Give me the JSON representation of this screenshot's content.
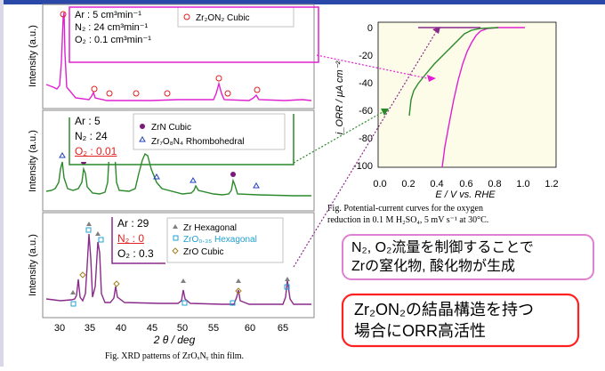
{
  "colors": {
    "top_bar": "#2a48a8",
    "magenta": "#e020d0",
    "green": "#2a8a2a",
    "purple": "#8a2a8a",
    "red": "#e02020",
    "orc_bg": "#fcfce8"
  },
  "xrd": {
    "panels": [
      {
        "ylabel": "Intensity (a.u.)",
        "conditions": {
          "ar": "Ar : 5 cm³min⁻¹",
          "n2": "N₂ : 24 cm³min⁻¹",
          "o2": "O₂ : 0.1 cm³min⁻¹"
        },
        "legend": [
          {
            "marker": "open-circle-red",
            "label": "Zr₂ON₂ Cubic"
          }
        ]
      },
      {
        "ylabel": "Intensity (a.u.)",
        "conditions": {
          "ar": "Ar : 5",
          "n2": "N₂ : 24",
          "o2": "O₂ : 0.01"
        },
        "legend": [
          {
            "marker": "filled-circle-purple",
            "label": "ZrN Cubic"
          },
          {
            "marker": "open-triangle-blue",
            "label": "Zr₇O₈N₄ Rhombohedral"
          }
        ],
        "peak_label": "GC"
      },
      {
        "ylabel": "Intensity (a.u.)",
        "conditions": {
          "ar": "Ar : 29",
          "n2": "N₂ : 0",
          "o2": "O₂ : 0.3"
        },
        "legend": [
          {
            "marker": "filled-triangle-gray",
            "label": "Zr Hexagonal"
          },
          {
            "marker": "open-square-cyan",
            "label": "ZrO₀.₃₅ Hexagonal"
          },
          {
            "marker": "open-diamond-olive",
            "label": "ZrO Cubic"
          }
        ]
      }
    ],
    "x_ticks": [
      "30",
      "35",
      "40",
      "45",
      "50",
      "55",
      "60",
      "65"
    ],
    "x_label": "2 θ / deg",
    "caption": "Fig. XRD patterns of ZrOₓNᵧ thin film."
  },
  "orr": {
    "y_ticks": [
      "0",
      "-20",
      "-40",
      "-60",
      "-80",
      "-100"
    ],
    "x_ticks": [
      "0.0",
      "0.2",
      "0.4",
      "0.6",
      "0.8",
      "1.0",
      "1.2"
    ],
    "y_label": "i_ORR / μA cm⁻²",
    "x_label": "E / V vs. RHE",
    "caption_line1": "Fig.  Potential-current  curves  for  the  oxygen",
    "caption_line2": "reduction in 0.1 M H₂SO₄, 5 mV s⁻¹ at 30°C."
  },
  "note1": {
    "line1": "N₂, O₂流量を制御することで",
    "line2": "Zrの窒化物, 酸化物が生成"
  },
  "note2": {
    "line1": "Zr₂ON₂の結晶構造を持つ",
    "line2": "場合にORR高活性"
  }
}
